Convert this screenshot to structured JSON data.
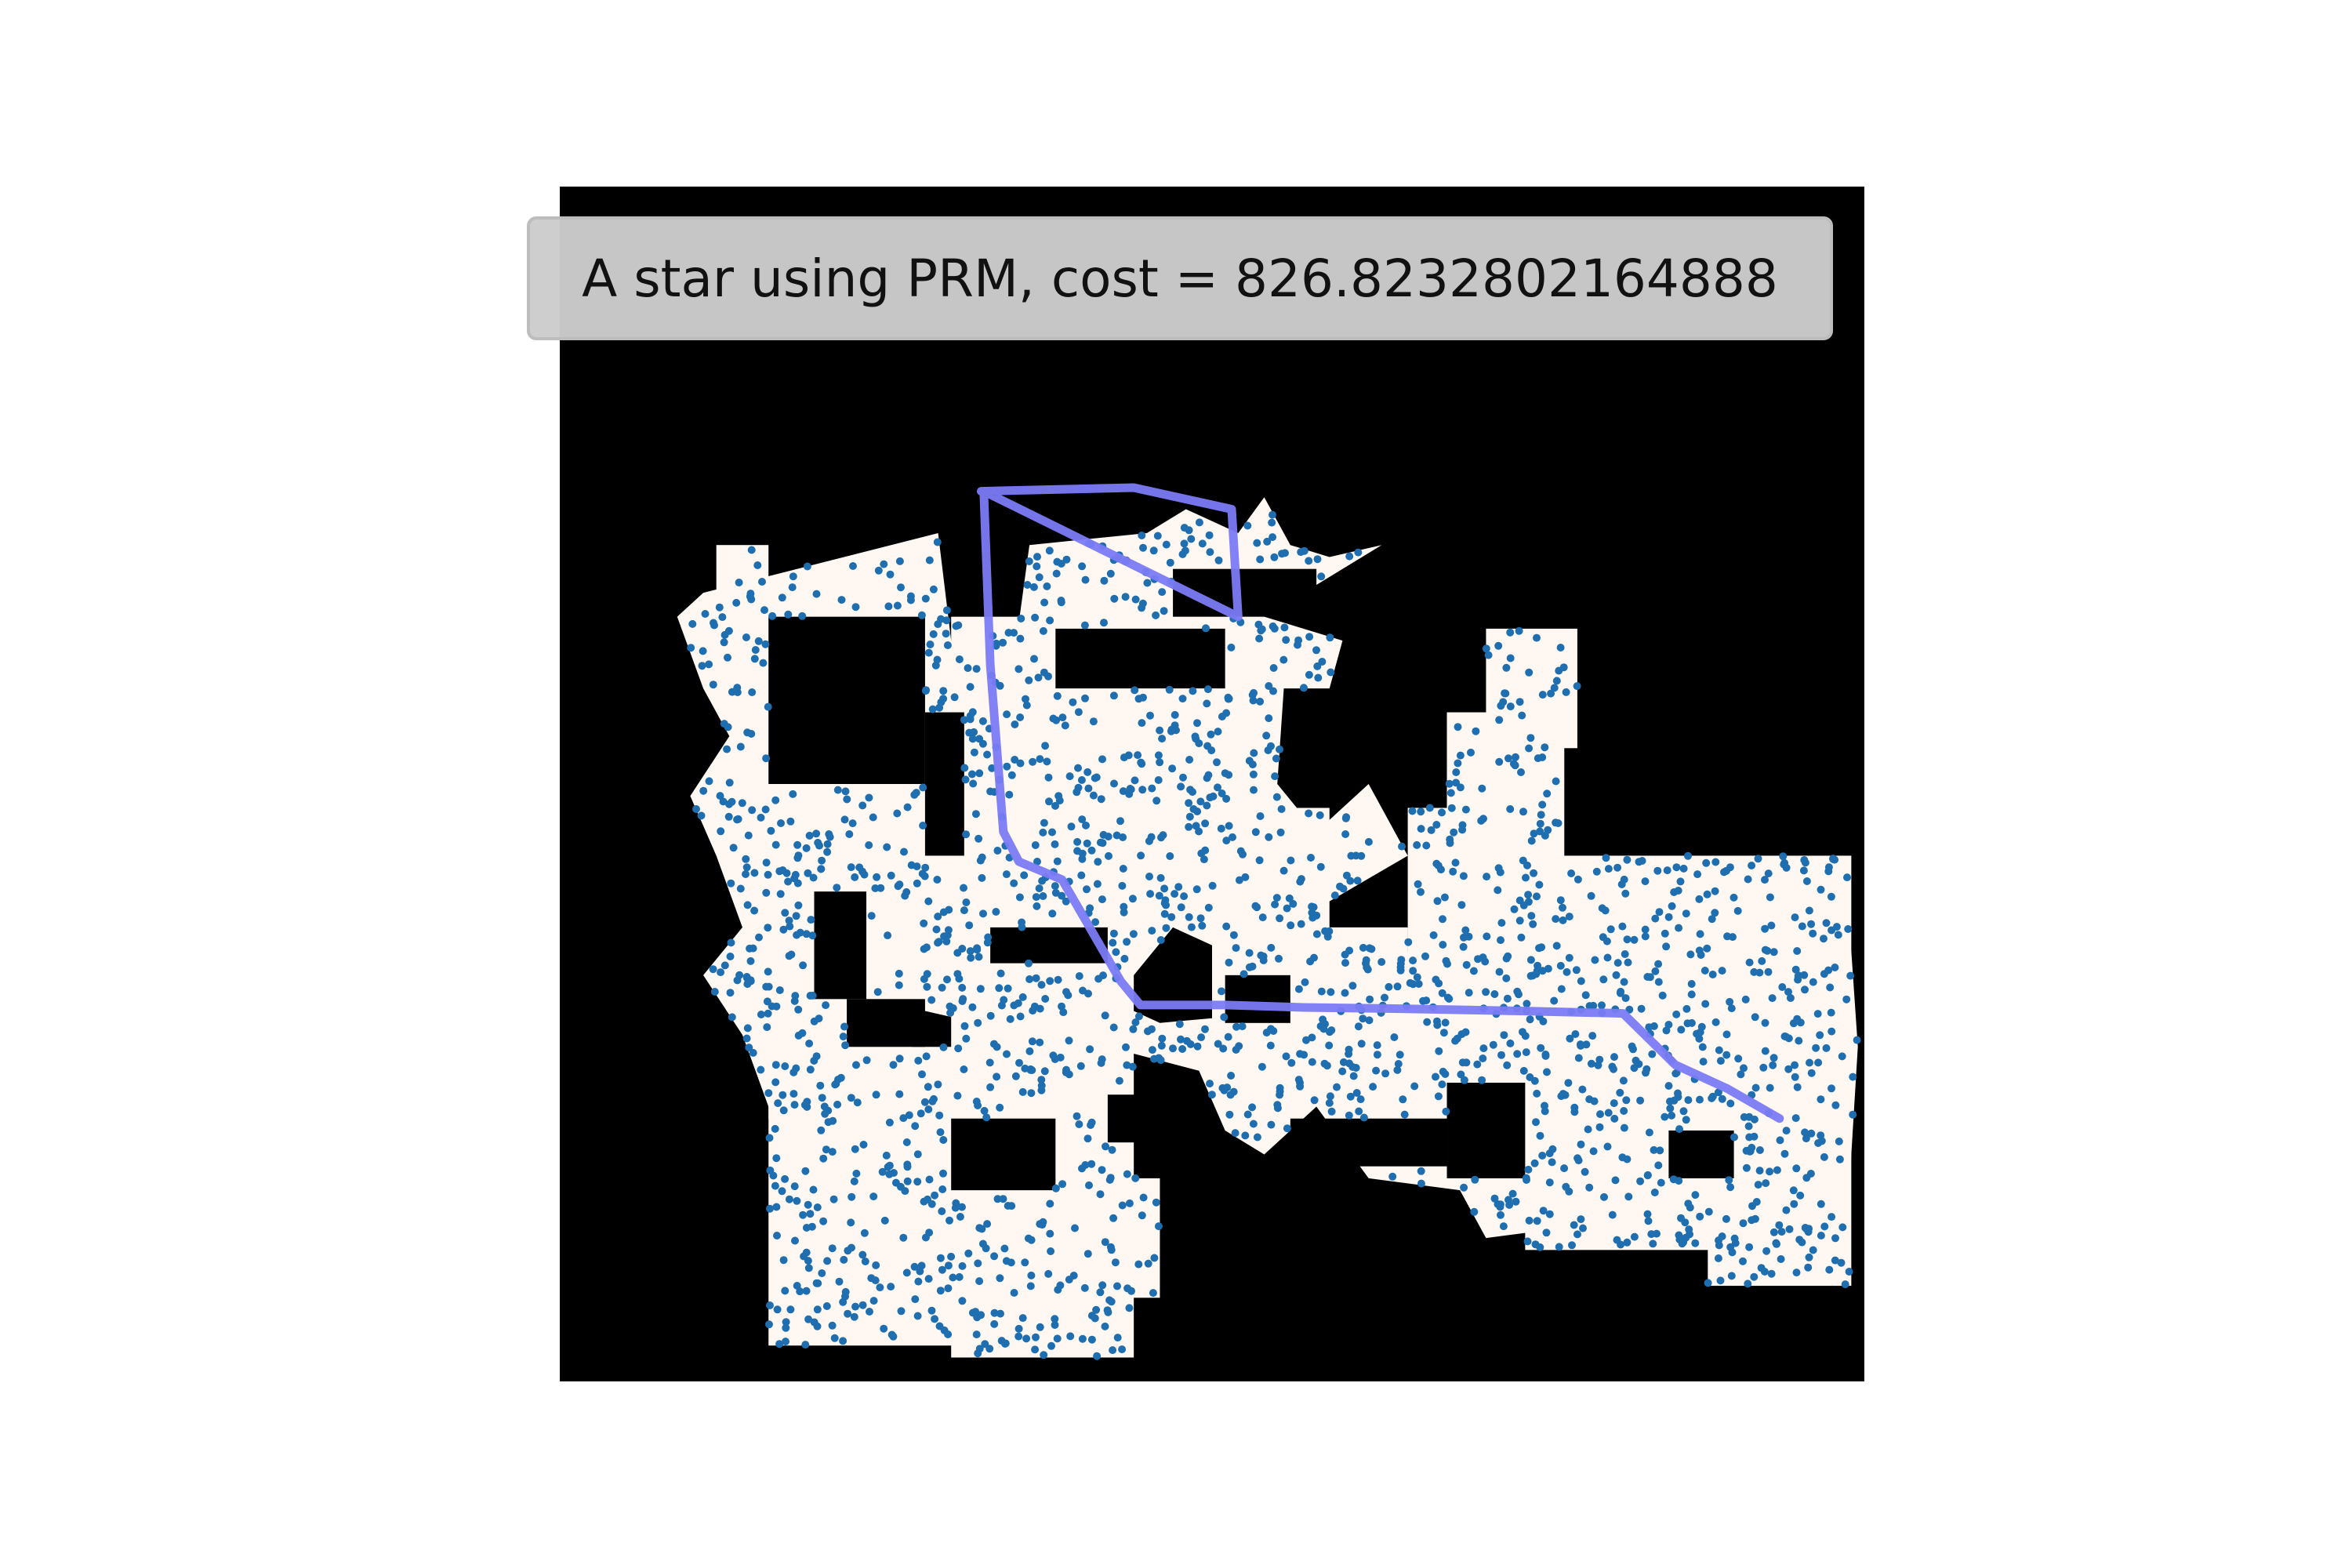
{
  "figure": {
    "title": "A star using PRM, cost = 826.8232802164888"
  },
  "colors": {
    "background": "#ffffff",
    "occupied": "#000000",
    "free": "#fff8f2",
    "sample_points": "#1f6fb0",
    "path": "#7b7bf5"
  },
  "map": {
    "x_range": [
      0,
      1000
    ],
    "y_range": [
      0,
      1000
    ],
    "y_axis": "down",
    "free_space_polygons": [
      [
        [
          110,
          340
        ],
        [
          290,
          290
        ],
        [
          300,
          380
        ],
        [
          350,
          380
        ],
        [
          360,
          300
        ],
        [
          450,
          290
        ],
        [
          480,
          270
        ],
        [
          520,
          290
        ],
        [
          540,
          260
        ],
        [
          560,
          300
        ],
        [
          590,
          310
        ],
        [
          630,
          300
        ],
        [
          540,
          360
        ],
        [
          600,
          380
        ],
        [
          590,
          420
        ],
        [
          555,
          420
        ],
        [
          550,
          500
        ],
        [
          580,
          540
        ],
        [
          620,
          500
        ],
        [
          650,
          560
        ],
        [
          540,
          630
        ],
        [
          520,
          620
        ],
        [
          510,
          640
        ],
        [
          470,
          620
        ],
        [
          440,
          660
        ],
        [
          370,
          620
        ],
        [
          360,
          660
        ],
        [
          330,
          650
        ],
        [
          320,
          700
        ],
        [
          280,
          690
        ],
        [
          270,
          720
        ],
        [
          290,
          760
        ],
        [
          260,
          810
        ],
        [
          200,
          840
        ],
        [
          170,
          800
        ],
        [
          140,
          710
        ],
        [
          110,
          660
        ],
        [
          140,
          620
        ],
        [
          120,
          560
        ],
        [
          100,
          510
        ],
        [
          130,
          460
        ],
        [
          110,
          420
        ],
        [
          90,
          360
        ],
        [
          110,
          340
        ]
      ],
      [
        [
          330,
          410
        ],
        [
          500,
          400
        ],
        [
          500,
          500
        ],
        [
          445,
          560
        ],
        [
          420,
          680
        ],
        [
          460,
          700
        ],
        [
          560,
          690
        ],
        [
          640,
          700
        ],
        [
          810,
          700
        ],
        [
          860,
          680
        ],
        [
          880,
          640
        ],
        [
          990,
          640
        ],
        [
          995,
          720
        ],
        [
          985,
          900
        ],
        [
          940,
          910
        ],
        [
          860,
          840
        ],
        [
          780,
          870
        ],
        [
          710,
          880
        ],
        [
          690,
          840
        ],
        [
          620,
          830
        ],
        [
          580,
          770
        ],
        [
          540,
          810
        ],
        [
          510,
          790
        ],
        [
          490,
          740
        ],
        [
          420,
          720
        ],
        [
          380,
          700
        ],
        [
          320,
          610
        ],
        [
          300,
          560
        ],
        [
          340,
          530
        ],
        [
          320,
          480
        ],
        [
          330,
          410
        ]
      ]
    ],
    "free_space_rects": [
      [
        120,
        300,
        40,
        130
      ],
      [
        160,
        330,
        80,
        180
      ],
      [
        160,
        480,
        90,
        300
      ],
      [
        250,
        330,
        40,
        230
      ],
      [
        300,
        360,
        60,
        60
      ],
      [
        380,
        310,
        130,
        140
      ],
      [
        470,
        340,
        40,
        160
      ],
      [
        500,
        520,
        90,
        200
      ],
      [
        160,
        720,
        170,
        250
      ],
      [
        300,
        650,
        140,
        330
      ],
      [
        340,
        830,
        120,
        100
      ],
      [
        510,
        620,
        140,
        130
      ],
      [
        640,
        640,
        120,
        110
      ],
      [
        650,
        520,
        60,
        130
      ],
      [
        680,
        440,
        90,
        250
      ],
      [
        710,
        370,
        70,
        100
      ],
      [
        740,
        560,
        250,
        150
      ],
      [
        740,
        680,
        230,
        210
      ],
      [
        880,
        760,
        110,
        160
      ]
    ],
    "obstacle_rects": [
      [
        160,
        360,
        120,
        140
      ],
      [
        470,
        320,
        110,
        40
      ],
      [
        380,
        370,
        130,
        50
      ],
      [
        280,
        440,
        30,
        120
      ],
      [
        195,
        590,
        40,
        90
      ],
      [
        330,
        620,
        90,
        30
      ],
      [
        220,
        680,
        60,
        40
      ],
      [
        300,
        780,
        80,
        60
      ],
      [
        420,
        760,
        60,
        40
      ],
      [
        560,
        780,
        120,
        40
      ],
      [
        680,
        750,
        60,
        80
      ],
      [
        850,
        790,
        50,
        40
      ],
      [
        510,
        660,
        50,
        40
      ]
    ]
  },
  "chart_data": {
    "type": "scatter",
    "title": "A star using PRM, cost = 826.8232802164888",
    "xlabel": "",
    "ylabel": "",
    "xlim": [
      0,
      1000
    ],
    "ylim": [
      1000,
      0
    ],
    "grid": false,
    "axes_visible": false,
    "series": [
      {
        "kind": "sampled_nodes",
        "count": 2000,
        "generator": {
          "seed": 7,
          "rejection_sampling": "free_space"
        }
      },
      {
        "kind": "path",
        "points": [
          [
            323,
            255
          ],
          [
            440,
            252
          ],
          [
            515,
            270
          ],
          [
            520,
            360
          ],
          [
            325,
            255
          ],
          [
            330,
            400
          ],
          [
            340,
            540
          ],
          [
            352,
            565
          ],
          [
            385,
            580
          ],
          [
            430,
            665
          ],
          [
            445,
            685
          ],
          [
            510,
            685
          ],
          [
            570,
            687
          ],
          [
            640,
            688
          ],
          [
            740,
            690
          ],
          [
            815,
            692
          ],
          [
            855,
            735
          ],
          [
            895,
            755
          ],
          [
            935,
            780
          ]
        ]
      }
    ]
  }
}
